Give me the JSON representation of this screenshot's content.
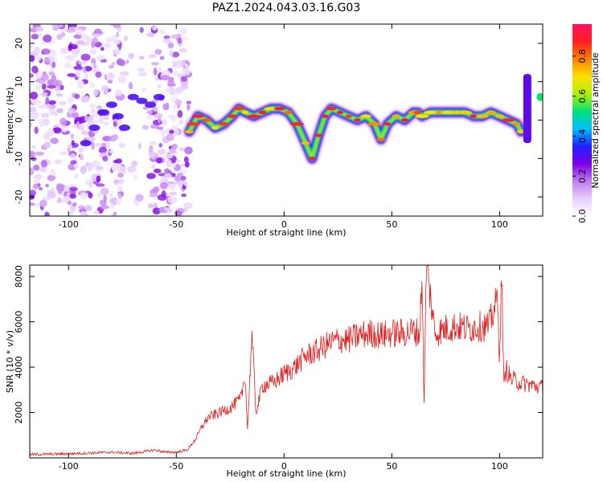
{
  "title": "PAZ1.2024.043.03.16.G03",
  "chart_data": [
    {
      "type": "heatmap",
      "title": "PAZ1.2024.043.03.16.G03",
      "xlabel": "Height of straight line (km)",
      "ylabel": "Frequency (Hz)",
      "xlim": [
        -118,
        120
      ],
      "ylim": [
        -25,
        25
      ],
      "x_ticks": [
        -100,
        -50,
        0,
        50,
        100
      ],
      "y_ticks": [
        -20,
        -10,
        0,
        10,
        20
      ],
      "colorbar": {
        "label": "Normalized spectral amplitude",
        "range": [
          0.0,
          0.96
        ],
        "ticks": [
          0.0,
          0.2,
          0.4,
          0.6,
          0.8
        ],
        "colormap": [
          "#ffffff",
          "#e6cfff",
          "#c27cf0",
          "#7a00e6",
          "#2020ff",
          "#00c0ff",
          "#00e07a",
          "#b0f000",
          "#ffe000",
          "#ff8000",
          "#ff2020",
          "#ff1060"
        ]
      },
      "ridge_frequency_hz": {
        "x": [
          -44,
          -42,
          -40,
          -36,
          -32,
          -28,
          -24,
          -21,
          -18,
          -14,
          -10,
          -6,
          -2,
          2,
          6,
          10,
          13,
          16,
          19,
          22,
          26,
          30,
          34,
          38,
          42,
          45,
          48,
          52,
          56,
          60,
          62,
          64,
          68,
          72,
          76,
          80,
          84,
          88,
          92,
          96,
          100,
          104,
          108,
          110
        ],
        "y": [
          -3,
          -1,
          1,
          0,
          -2,
          -1,
          1,
          3,
          2,
          1,
          2,
          3,
          3,
          2,
          -1,
          -6,
          -10,
          -4,
          1,
          3,
          2,
          1,
          0,
          1,
          -1,
          -5,
          -1,
          1,
          0,
          2,
          2,
          1,
          2,
          2,
          2,
          2,
          2,
          1,
          1,
          2,
          1,
          0,
          -1,
          -3
        ]
      },
      "noise_region_x": [
        -118,
        -44
      ]
    },
    {
      "type": "line",
      "xlabel": "Height of straight line (km)",
      "ylabel": "SNR (10 * v/v)",
      "xlim": [
        -118,
        120
      ],
      "ylim": [
        0,
        8500
      ],
      "x_ticks": [
        -100,
        -50,
        0,
        50,
        100
      ],
      "y_ticks": [
        2000,
        4000,
        6000,
        8000
      ],
      "color": "#e02020",
      "series": [
        {
          "x": [
            -118,
            -100,
            -80,
            -70,
            -60,
            -55,
            -50,
            -45,
            -42,
            -40,
            -38,
            -35,
            -30,
            -25,
            -20,
            -18,
            -17,
            -16,
            -15,
            -13,
            -10,
            -5,
            0,
            5,
            10,
            15,
            20,
            25,
            30,
            35,
            40,
            45,
            50,
            55,
            60,
            63,
            64,
            65,
            66,
            70,
            75,
            80,
            85,
            90,
            95,
            99,
            100,
            101,
            102,
            103,
            105,
            110,
            115,
            120
          ],
          "y": [
            150,
            180,
            250,
            200,
            350,
            250,
            250,
            350,
            700,
            1000,
            1400,
            1800,
            2000,
            2200,
            2600,
            3700,
            1200,
            3200,
            5500,
            2000,
            3200,
            3300,
            3700,
            4000,
            4500,
            4700,
            5000,
            5200,
            5200,
            5400,
            5500,
            5400,
            5500,
            5500,
            5600,
            5500,
            8300,
            2200,
            8600,
            5500,
            5700,
            5800,
            5700,
            5800,
            5800,
            7000,
            4500,
            8200,
            3000,
            4000,
            3500,
            3300,
            3200,
            3100
          ]
        }
      ]
    }
  ]
}
